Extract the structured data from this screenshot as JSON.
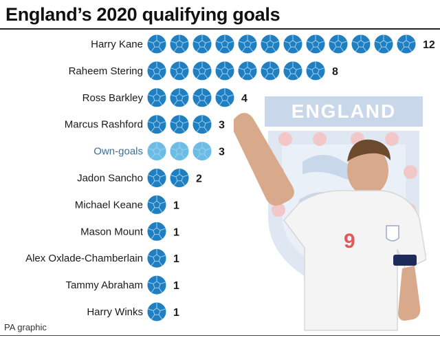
{
  "title": "England’s 2020 qualifying goals",
  "credit": "PA graphic",
  "crest_text": "ENGLAND",
  "colors": {
    "ball": "#1f7fc1",
    "ball_own_goal": "#6cbde6",
    "ball_lines": "#9fd0ef",
    "crest_blue": "#c9d7ea",
    "crest_red": "#f2c7c7"
  },
  "chart_data": {
    "type": "bar",
    "title": "England’s 2020 qualifying goals",
    "categories": [
      "Harry Kane",
      "Raheem Stering",
      "Ross Barkley",
      "Marcus Rashford",
      "Own-goals",
      "Jadon Sancho",
      "Michael Keane",
      "Mason Mount",
      "Alex Oxlade-Chamberlain",
      "Tammy Abraham",
      "Harry Winks"
    ],
    "values": [
      12,
      8,
      4,
      3,
      3,
      2,
      1,
      1,
      1,
      1,
      1
    ],
    "highlight": [
      "",
      "",
      "",
      "",
      "own-goal",
      "",
      "",
      "",
      "",
      "",
      ""
    ],
    "xlabel": "",
    "ylabel": "",
    "grid": false,
    "legend": "none"
  }
}
